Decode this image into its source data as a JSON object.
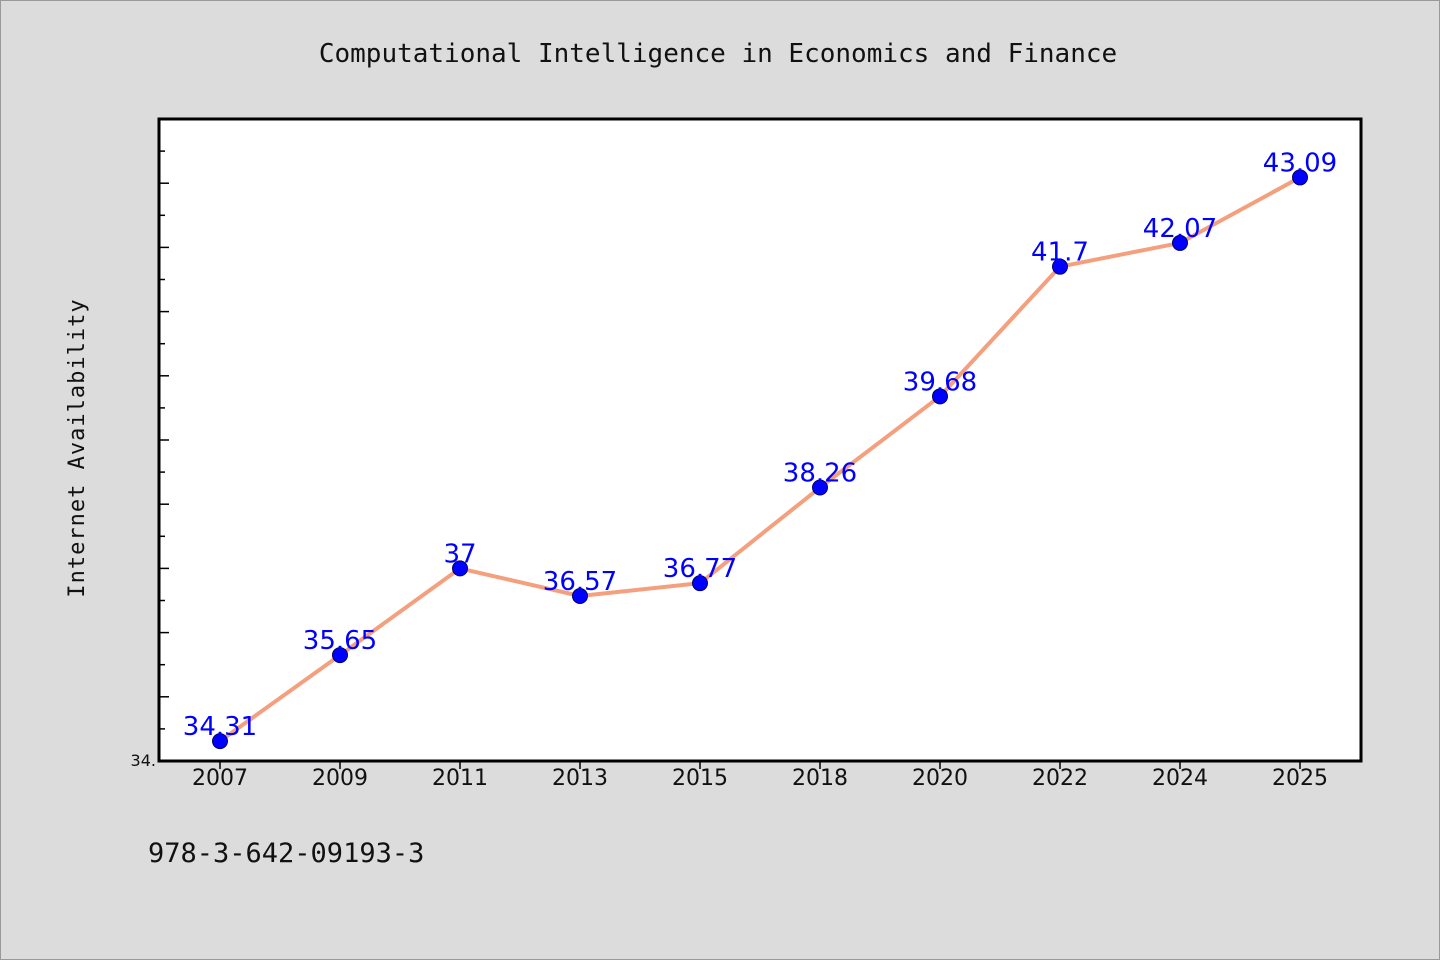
{
  "chart_data": {
    "type": "line",
    "title": "Computational Intelligence in Economics and Finance",
    "xlabel": "",
    "ylabel": "Internet Availability",
    "categories": [
      "2007",
      "2009",
      "2011",
      "2013",
      "2015",
      "2018",
      "2020",
      "2022",
      "2024",
      "2025"
    ],
    "series": [
      {
        "values": [
          34.31,
          35.65,
          37,
          36.57,
          36.77,
          38.26,
          39.68,
          41.7,
          42.07,
          43.09
        ],
        "data_labels": [
          "34.31",
          "35.65",
          "37",
          "36.57",
          "36.77",
          "38.26",
          "39.68",
          "41.7",
          "42.07",
          "43.09"
        ],
        "line_color": "#f4a07e",
        "marker_color": "#0000ff"
      }
    ],
    "ylim": [
      34.0,
      44.0
    ],
    "y_tick_labels": [
      "34."
    ],
    "grid": false,
    "legend": "none"
  },
  "footer": {
    "isbn": "978-3-642-09193-3"
  },
  "colors": {
    "background": "#dcdcdc",
    "plot_area": "#ffffff",
    "data_label": "#0000ff"
  }
}
